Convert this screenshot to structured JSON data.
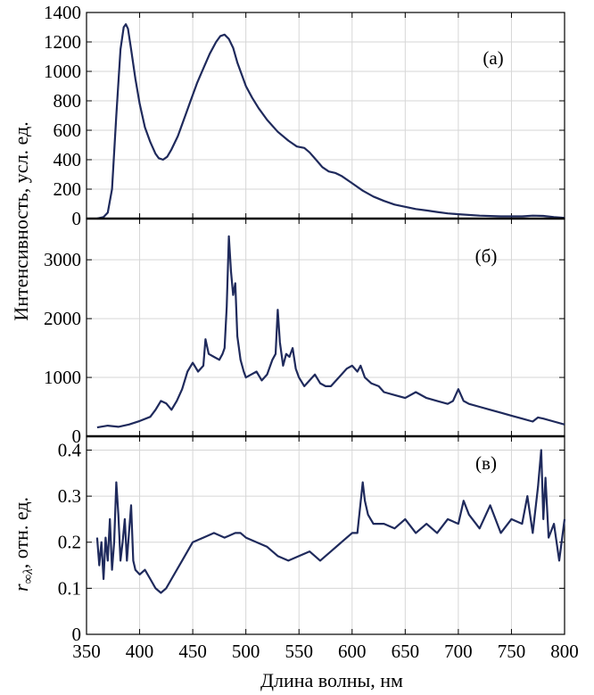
{
  "figure": {
    "xlabel": "Длина волны, нм",
    "ylabel_shared": "Интенсивность, усл. ед.",
    "ylabel_bottom": "r∞λ, отн. ед.",
    "line_color": "#1f2a5c",
    "grid_color": "#d6d6d6"
  },
  "chart_data": [
    {
      "type": "line",
      "panel_label": "(а)",
      "xlim": [
        350,
        800
      ],
      "ylim": [
        0,
        1400
      ],
      "xticks": [
        350,
        400,
        450,
        500,
        550,
        600,
        650,
        700,
        750,
        800
      ],
      "yticks": [
        0,
        200,
        400,
        600,
        800,
        1000,
        1200,
        1400
      ],
      "ytick_labels": [
        "0",
        "200",
        "400",
        "600",
        "800",
        "1000",
        "1200",
        "1400"
      ],
      "grid": true,
      "series": [
        {
          "x": [
            360,
            366,
            370,
            374,
            378,
            382,
            385,
            387,
            389,
            392,
            396,
            400,
            405,
            410,
            415,
            418,
            422,
            426,
            430,
            436,
            442,
            448,
            454,
            460,
            466,
            472,
            476,
            480,
            484,
            488,
            492,
            496,
            500,
            506,
            512,
            520,
            530,
            540,
            548,
            555,
            560,
            566,
            572,
            578,
            584,
            590,
            600,
            610,
            620,
            630,
            640,
            650,
            660,
            670,
            680,
            690,
            700,
            720,
            740,
            760,
            770,
            780,
            790,
            800
          ],
          "y": [
            0,
            10,
            40,
            200,
            700,
            1150,
            1300,
            1320,
            1290,
            1150,
            950,
            780,
            620,
            520,
            440,
            410,
            400,
            420,
            470,
            560,
            680,
            800,
            920,
            1020,
            1120,
            1200,
            1240,
            1250,
            1220,
            1160,
            1060,
            980,
            900,
            820,
            750,
            670,
            590,
            530,
            490,
            480,
            450,
            400,
            350,
            320,
            310,
            290,
            240,
            190,
            150,
            120,
            95,
            80,
            65,
            55,
            45,
            35,
            30,
            20,
            15,
            15,
            20,
            18,
            10,
            5
          ]
        }
      ]
    },
    {
      "type": "line",
      "panel_label": "(б)",
      "xlim": [
        350,
        800
      ],
      "ylim": [
        0,
        3700
      ],
      "xticks": [
        350,
        400,
        450,
        500,
        550,
        600,
        650,
        700,
        750,
        800
      ],
      "yticks": [
        0,
        1000,
        2000,
        3000
      ],
      "ytick_labels": [
        "0",
        "1000",
        "2000",
        "3000"
      ],
      "grid": true,
      "series": [
        {
          "x": [
            360,
            370,
            380,
            390,
            400,
            410,
            415,
            420,
            425,
            430,
            435,
            440,
            445,
            450,
            455,
            460,
            462,
            465,
            470,
            475,
            478,
            480,
            482,
            484,
            486,
            488,
            490,
            492,
            495,
            498,
            500,
            505,
            510,
            515,
            520,
            525,
            528,
            530,
            532,
            535,
            538,
            541,
            544,
            547,
            550,
            555,
            560,
            565,
            570,
            575,
            580,
            585,
            590,
            595,
            600,
            605,
            608,
            612,
            618,
            625,
            630,
            640,
            650,
            660,
            670,
            680,
            690,
            695,
            700,
            705,
            710,
            720,
            730,
            740,
            750,
            760,
            770,
            775,
            780,
            790,
            800
          ],
          "y": [
            150,
            180,
            160,
            200,
            260,
            330,
            450,
            600,
            560,
            450,
            600,
            800,
            1100,
            1250,
            1100,
            1200,
            1650,
            1400,
            1350,
            1300,
            1400,
            1500,
            2200,
            3400,
            2800,
            2400,
            2600,
            1700,
            1300,
            1100,
            1000,
            1050,
            1100,
            950,
            1050,
            1300,
            1400,
            2150,
            1600,
            1200,
            1400,
            1350,
            1500,
            1150,
            1000,
            850,
            950,
            1050,
            900,
            850,
            850,
            950,
            1050,
            1150,
            1200,
            1100,
            1200,
            1000,
            900,
            850,
            750,
            700,
            650,
            750,
            650,
            600,
            550,
            600,
            800,
            600,
            550,
            500,
            450,
            400,
            350,
            300,
            250,
            320,
            300,
            250,
            200
          ]
        }
      ]
    },
    {
      "type": "line",
      "panel_label": "(в)",
      "xlim": [
        350,
        800
      ],
      "ylim": [
        0,
        0.43
      ],
      "xticks": [
        350,
        400,
        450,
        500,
        550,
        600,
        650,
        700,
        750,
        800
      ],
      "xtick_labels": [
        "350",
        "400",
        "450",
        "500",
        "550",
        "600",
        "650",
        "700",
        "750",
        "800"
      ],
      "yticks": [
        0,
        0.1,
        0.2,
        0.3,
        0.4
      ],
      "ytick_labels": [
        "0",
        "0.1",
        "0.2",
        "0.3",
        "0.4"
      ],
      "grid": true,
      "series": [
        {
          "x": [
            360,
            362,
            364,
            366,
            368,
            370,
            372,
            374,
            376,
            378,
            380,
            382,
            384,
            386,
            388,
            390,
            392,
            394,
            396,
            400,
            405,
            410,
            415,
            420,
            425,
            430,
            440,
            450,
            460,
            470,
            480,
            490,
            495,
            500,
            510,
            520,
            530,
            540,
            550,
            560,
            570,
            580,
            590,
            600,
            605,
            610,
            612,
            615,
            620,
            630,
            640,
            650,
            660,
            670,
            680,
            690,
            700,
            705,
            710,
            720,
            730,
            740,
            750,
            760,
            765,
            770,
            775,
            778,
            780,
            782,
            785,
            790,
            795,
            800
          ],
          "y": [
            0.21,
            0.15,
            0.2,
            0.12,
            0.21,
            0.16,
            0.25,
            0.14,
            0.2,
            0.33,
            0.26,
            0.16,
            0.2,
            0.25,
            0.16,
            0.22,
            0.28,
            0.16,
            0.14,
            0.13,
            0.14,
            0.12,
            0.1,
            0.09,
            0.1,
            0.12,
            0.16,
            0.2,
            0.21,
            0.22,
            0.21,
            0.22,
            0.22,
            0.21,
            0.2,
            0.19,
            0.17,
            0.16,
            0.17,
            0.18,
            0.16,
            0.18,
            0.2,
            0.22,
            0.22,
            0.33,
            0.29,
            0.26,
            0.24,
            0.24,
            0.23,
            0.25,
            0.22,
            0.24,
            0.22,
            0.25,
            0.24,
            0.29,
            0.26,
            0.23,
            0.28,
            0.22,
            0.25,
            0.24,
            0.3,
            0.22,
            0.32,
            0.4,
            0.25,
            0.34,
            0.21,
            0.24,
            0.16,
            0.25
          ]
        }
      ]
    }
  ]
}
